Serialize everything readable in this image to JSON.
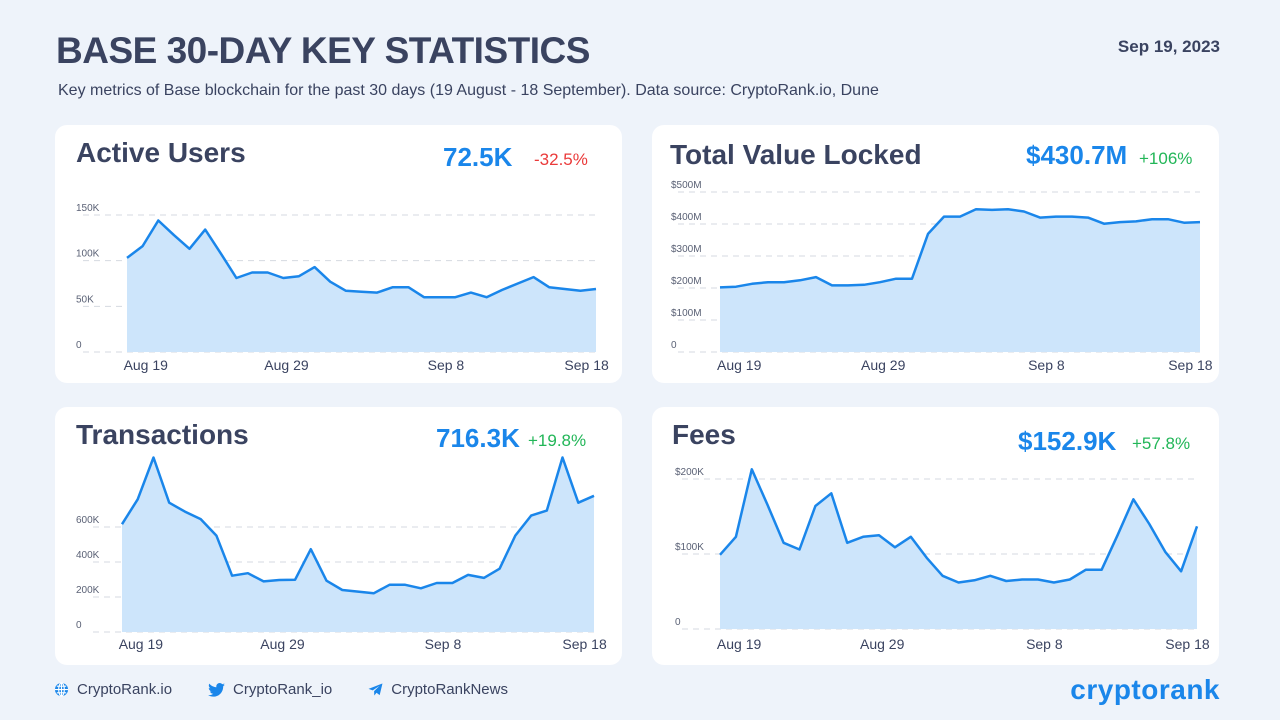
{
  "header": {
    "title": "BASE 30-DAY KEY STATISTICS",
    "date": "Sep 19, 2023",
    "subtitle": "Key metrics of Base blockchain for the past 30 days (19 August - 18 September). Data source: CryptoRank.io, Dune"
  },
  "colors": {
    "line": "#1a86ea",
    "fill": "#cde5fb",
    "grid": "#d5d9e0",
    "negative": "#ea3a3a",
    "positive": "#22b658"
  },
  "chart_data": [
    {
      "type": "area",
      "title": "Active Users",
      "headline_value": "72.5K",
      "change": "-32.5%",
      "change_sign": "negative",
      "x_ticks": [
        "Aug 19",
        "Aug 29",
        "Sep 8",
        "Sep 18"
      ],
      "y_ticks": [
        "0",
        "50K",
        "100K",
        "150K"
      ],
      "y_tick_values": [
        0,
        50,
        100,
        150
      ],
      "ylim": [
        0,
        150
      ],
      "unit": "thousands",
      "values": [
        103,
        116,
        144,
        128,
        113,
        134,
        108,
        81,
        87,
        87,
        81,
        83,
        93,
        77,
        67,
        66,
        65,
        71,
        71,
        60,
        60,
        60,
        65,
        60,
        68,
        75,
        82,
        71,
        69,
        67,
        69
      ]
    },
    {
      "type": "area",
      "title": "Total Value Locked",
      "headline_value": "$430.7M",
      "change": "+106%",
      "change_sign": "positive",
      "x_ticks": [
        "Aug 19",
        "Aug 29",
        "Sep 8",
        "Sep 18"
      ],
      "y_ticks": [
        "0",
        "$100M",
        "$200M",
        "$300M",
        "$400M",
        "$500M"
      ],
      "y_tick_values": [
        0,
        100,
        200,
        300,
        400,
        500
      ],
      "ylim": [
        0,
        500
      ],
      "unit": "millions USD",
      "values": [
        202,
        204,
        213,
        218,
        218,
        224,
        234,
        208,
        208,
        210,
        218,
        229,
        229,
        369,
        423,
        423,
        446,
        444,
        446,
        439,
        420,
        423,
        423,
        420,
        401,
        406,
        408,
        415,
        415,
        404,
        406
      ]
    },
    {
      "type": "area",
      "title": "Transactions",
      "headline_value": "716.3K",
      "change": "+19.8%",
      "change_sign": "positive",
      "x_ticks": [
        "Aug 19",
        "Aug 29",
        "Sep 8",
        "Sep 18"
      ],
      "y_ticks": [
        "0",
        "200K",
        "400K",
        "600K"
      ],
      "y_tick_values": [
        0,
        200,
        400,
        600
      ],
      "ylim": [
        0,
        1000
      ],
      "unit": "thousands",
      "values": [
        616,
        758,
        997,
        739,
        688,
        645,
        551,
        322,
        336,
        289,
        297,
        299,
        473,
        293,
        240,
        231,
        221,
        270,
        270,
        250,
        280,
        280,
        326,
        309,
        362,
        551,
        665,
        694,
        997,
        739,
        778
      ]
    },
    {
      "type": "area",
      "title": "Fees",
      "headline_value": "$152.9K",
      "change": "+57.8%",
      "change_sign": "positive",
      "x_ticks": [
        "Aug 19",
        "Aug 29",
        "Sep 8",
        "Sep 18"
      ],
      "y_ticks": [
        "0",
        "$100K",
        "$200K"
      ],
      "y_tick_values": [
        0,
        100,
        200
      ],
      "ylim": [
        0,
        220
      ],
      "unit": "thousands USD",
      "values": [
        99,
        123,
        213,
        165,
        115,
        106,
        164,
        181,
        115,
        123,
        125,
        109,
        123,
        95,
        71,
        62,
        65,
        71,
        64,
        66,
        66,
        62,
        66,
        79,
        79,
        125,
        173,
        140,
        103,
        77,
        137
      ]
    }
  ],
  "footer": {
    "links": [
      {
        "icon": "globe-icon",
        "label": "CryptoRank.io"
      },
      {
        "icon": "twitter-icon",
        "label": "CryptoRank_io"
      },
      {
        "icon": "telegram-icon",
        "label": "CryptoRankNews"
      }
    ],
    "logo": "cryptorank"
  }
}
